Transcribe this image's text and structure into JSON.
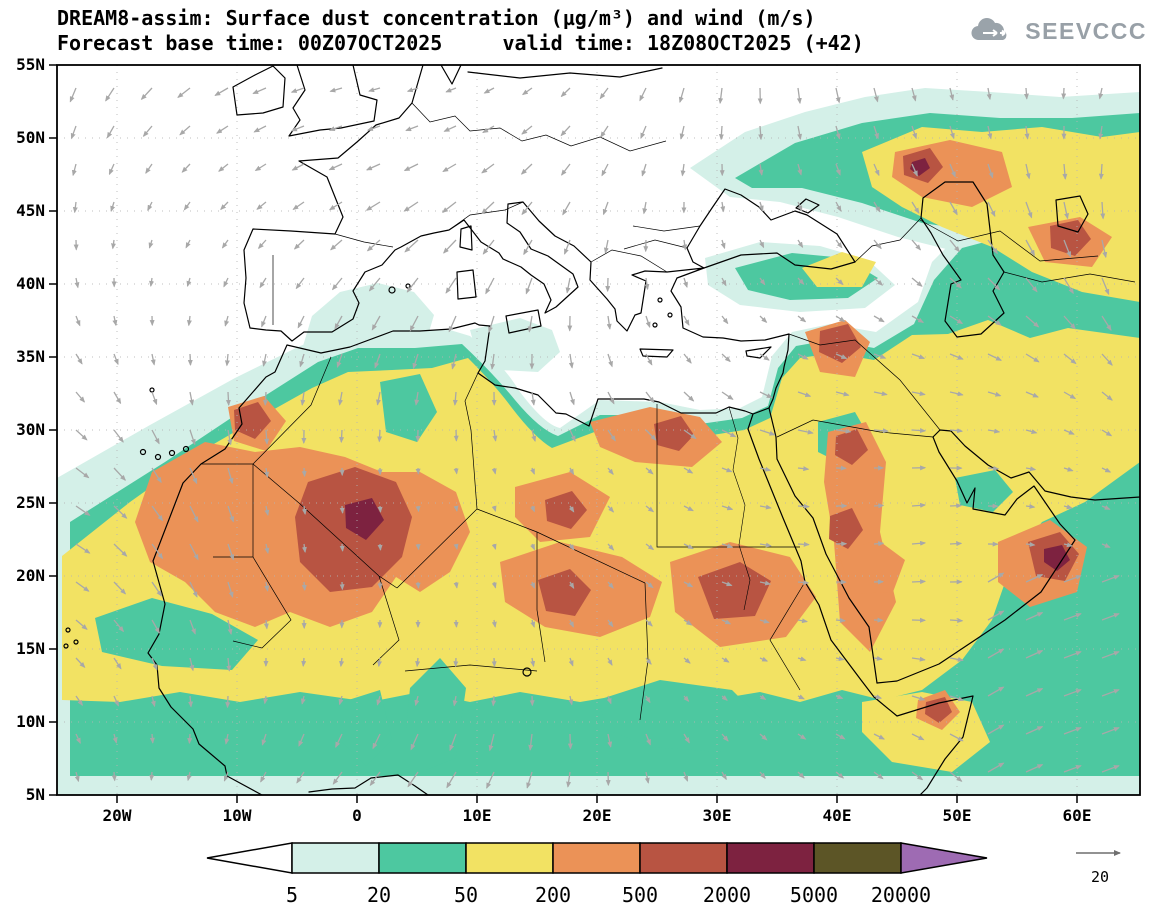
{
  "header": {
    "title_line1": "DREAM8-assim: Surface dust concentration (µg/m³) and wind (m/s)",
    "title_line2": "Forecast base time: 00Z07OCT2025     valid time: 18Z08OCT2025 (+42)"
  },
  "logo": {
    "text": "SEEVCCC"
  },
  "chart_data": {
    "type": "heatmap",
    "title": "DREAM8-assim: Surface dust concentration (µg/m³) and wind (m/s)",
    "model": "DREAM8-assim",
    "variable": "Surface dust concentration (µg/m³) and wind (m/s)",
    "forecast_base_time": "00Z07OCT2025",
    "valid_time": "18Z08OCT2025",
    "forecast_step": "+42",
    "lat_ticks": [
      "55N",
      "50N",
      "45N",
      "40N",
      "35N",
      "30N",
      "25N",
      "20N",
      "15N",
      "10N",
      "5N"
    ],
    "lon_ticks": [
      "20W",
      "10W",
      "0",
      "10E",
      "20E",
      "30E",
      "40E",
      "50E",
      "60E"
    ],
    "lat_range_deg": [
      5,
      55
    ],
    "lon_range_deg": [
      -25,
      65
    ],
    "legend": {
      "levels": [
        5,
        20,
        50,
        200,
        500,
        2000,
        5000,
        20000
      ],
      "band_colors": [
        "#ffffff",
        "#d4f0e8",
        "#4dc8a0",
        "#f2e263",
        "#eb9257",
        "#b85442",
        "#7d2240",
        "#5c5526",
        "#9e6bb3"
      ],
      "units": "µg/m³"
    },
    "wind_reference": "20",
    "wind_units": "m/s",
    "wind_color": "#a8a8a8"
  }
}
